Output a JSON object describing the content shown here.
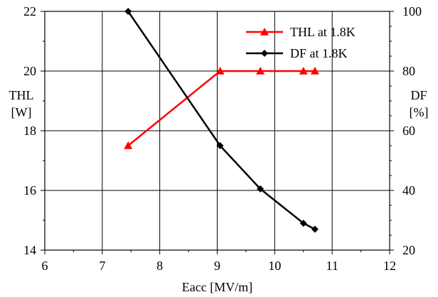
{
  "chart_data": {
    "type": "line",
    "title": "",
    "xlabel": "Eacc [MV/m]",
    "ylabel_left": [
      "THL",
      "[W]"
    ],
    "ylabel_right": [
      "DF",
      "[%]"
    ],
    "xlim": [
      6,
      12
    ],
    "ylim_left": [
      14,
      22
    ],
    "ylim_right": [
      20,
      100
    ],
    "x_ticks": [
      6,
      7,
      8,
      9,
      10,
      11,
      12
    ],
    "y_ticks_left": [
      14,
      16,
      18,
      20,
      22
    ],
    "y_ticks_right": [
      20,
      40,
      60,
      80,
      100
    ],
    "grid": true,
    "legend_position": "top-right",
    "series": [
      {
        "name": "THL at 1.8K",
        "axis": "left",
        "color": "#ff0000",
        "marker": "triangle",
        "x": [
          7.45,
          9.05,
          9.75,
          10.5,
          10.7
        ],
        "y": [
          17.5,
          20.0,
          20.0,
          20.0,
          20.0
        ]
      },
      {
        "name": "DF at 1.8K",
        "axis": "right",
        "color": "#000000",
        "marker": "diamond",
        "x": [
          7.45,
          9.05,
          9.75,
          10.5,
          10.7
        ],
        "y": [
          100,
          55,
          40.5,
          29,
          27
        ]
      }
    ]
  }
}
